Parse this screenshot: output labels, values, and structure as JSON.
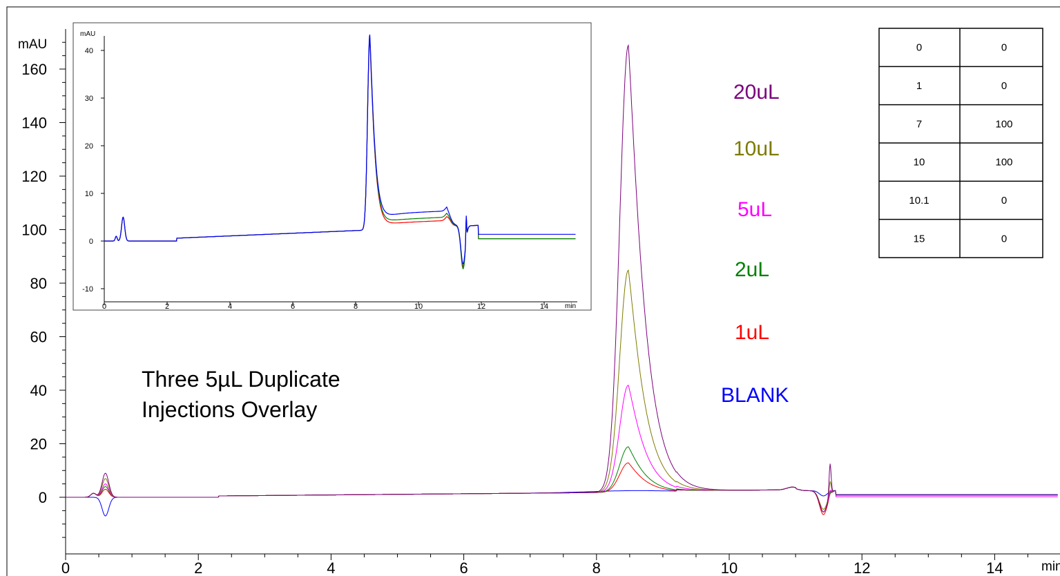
{
  "chart_data": {
    "type": "line",
    "main": {
      "xunit": "min",
      "yunit": "mAU",
      "xlim": [
        0,
        15
      ],
      "ylim": [
        -20,
        170
      ],
      "xticks": [
        0,
        2,
        4,
        6,
        8,
        10,
        12,
        14
      ],
      "yticks": [
        0,
        20,
        40,
        60,
        80,
        100,
        120,
        140,
        160
      ],
      "annotation_lines": [
        "Three 5µL Duplicate",
        "Injections Overlay"
      ],
      "peak_rt": 8.48,
      "series": [
        {
          "name": "20uL",
          "color": "#7b007b",
          "early_peak": 9,
          "main_peak": 167,
          "late_spike": 12,
          "dip": -8
        },
        {
          "name": "10uL",
          "color": "#7d7a00",
          "early_peak": 7,
          "main_peak": 83,
          "late_spike": 5,
          "dip": -7
        },
        {
          "name": "5uL",
          "color": "#ff00ff",
          "early_peak": 5,
          "main_peak": 40,
          "late_spike": 2,
          "dip": -8
        },
        {
          "name": "2uL",
          "color": "#008000",
          "early_peak": 4,
          "main_peak": 17,
          "late_spike": 1,
          "dip": -8
        },
        {
          "name": "1uL",
          "color": "#ff0000",
          "early_peak": 3,
          "main_peak": 11,
          "late_spike": 1,
          "dip": -9
        },
        {
          "name": "BLANK",
          "color": "#0000ff",
          "early_peak": -7,
          "main_peak": 0,
          "late_spike": 0,
          "dip": -2
        }
      ]
    },
    "inset": {
      "yunit": "mAU",
      "xunit": "min",
      "xlim": [
        0,
        15
      ],
      "ylim": [
        -12,
        42
      ],
      "xticks": [
        0,
        2,
        4,
        6,
        8,
        10,
        12,
        14
      ],
      "yticks": [
        -10,
        0,
        10,
        20,
        30,
        40
      ],
      "series": [
        {
          "color": "#0000ff",
          "main_peak": 41,
          "plateau": 3.3,
          "dip": -8
        },
        {
          "color": "#008000",
          "main_peak": 40.5,
          "plateau": 2.0,
          "dip": -9
        },
        {
          "color": "#ff0000",
          "main_peak": 40,
          "plateau": 1.3,
          "dip": -8.5
        }
      ]
    },
    "gradient_table": {
      "rows": [
        [
          "0",
          "0"
        ],
        [
          "1",
          "0"
        ],
        [
          "7",
          "100"
        ],
        [
          "10",
          "100"
        ],
        [
          "10.1",
          "0"
        ],
        [
          "15",
          "0"
        ]
      ]
    }
  }
}
